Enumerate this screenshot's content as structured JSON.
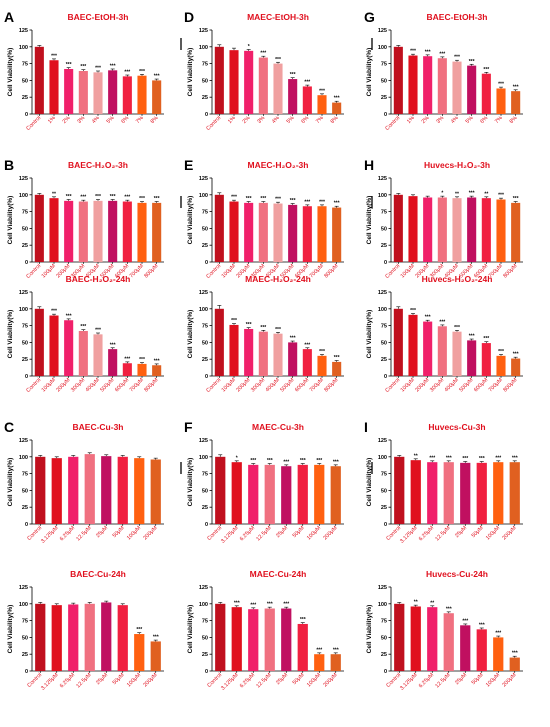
{
  "colors": {
    "title": "#e0101e",
    "category_label": "#e0101e",
    "axis": "#000000",
    "palette9": [
      "#c0101e",
      "#e0101e",
      "#f0206a",
      "#f07080",
      "#f0a0a0",
      "#c01060",
      "#f02040",
      "#ff6010",
      "#e06020"
    ],
    "palette8": [
      "#c0101e",
      "#e0101e",
      "#f0206a",
      "#f07080",
      "#c01060",
      "#f02040",
      "#ff6010",
      "#e06020"
    ],
    "palette7": [
      "#c0101e",
      "#e0101e",
      "#f0206a",
      "#f07080",
      "#c01060",
      "#ff6010",
      "#f02040"
    ]
  },
  "chart_data": [
    {
      "type": "bar",
      "panel": "A",
      "title": "BAEC-EtOH-3h",
      "ylabel": "Cell Viability(%)",
      "ylim": [
        0,
        125
      ],
      "yticks": [
        0,
        25,
        50,
        75,
        100,
        125
      ],
      "categories": [
        "Control",
        "1%",
        "2%",
        "3%",
        "4%",
        "5%",
        "6%",
        "7%",
        "8%"
      ],
      "values": [
        100,
        80,
        67,
        64,
        62,
        65,
        56,
        57,
        50
      ],
      "errors": [
        2,
        2,
        2,
        2,
        2,
        2,
        2,
        2,
        2
      ],
      "significance": [
        "",
        "***",
        "***",
        "***",
        "***",
        "***",
        "***",
        "***",
        "***"
      ]
    },
    {
      "type": "bar",
      "panel": "D",
      "title": "MAEC-EtOH-3h",
      "ylabel": "Cell Viability(%)",
      "ylim": [
        0,
        125
      ],
      "yticks": [
        0,
        25,
        50,
        75,
        100,
        125
      ],
      "categories": [
        "Control",
        "1%",
        "2%",
        "3%",
        "4%",
        "5%",
        "6%",
        "7%",
        "8%"
      ],
      "values": [
        100,
        95,
        94,
        84,
        75,
        52,
        41,
        28,
        17
      ],
      "errors": [
        3,
        3,
        2,
        2,
        2,
        2,
        2,
        2,
        2
      ],
      "significance": [
        "",
        "",
        "*",
        "***",
        "***",
        "***",
        "***",
        "***",
        "***"
      ]
    },
    {
      "type": "bar",
      "panel": "G",
      "title": "BAEC-EtOH-3h",
      "ylabel": "Cell Viability(%)",
      "ylim": [
        0,
        125
      ],
      "yticks": [
        0,
        25,
        50,
        75,
        100,
        125
      ],
      "categories": [
        "Control",
        "1%",
        "2%",
        "3%",
        "4%",
        "5%",
        "6%",
        "7%",
        "8%"
      ],
      "values": [
        100,
        87,
        86,
        83,
        78,
        72,
        60,
        38,
        34
      ],
      "errors": [
        2,
        2,
        2,
        2,
        2,
        2,
        2,
        2,
        2
      ],
      "significance": [
        "",
        "***",
        "***",
        "***",
        "***",
        "***",
        "***",
        "***",
        "***"
      ]
    },
    {
      "type": "bar",
      "panel": "B",
      "title": "BAEC-H₂O₂-3h",
      "ylabel": "Cell Viability(%)",
      "ylim": [
        0,
        125
      ],
      "yticks": [
        0,
        25,
        50,
        75,
        100,
        125
      ],
      "categories": [
        "Control",
        "100μM",
        "200μM",
        "300μM",
        "400μM",
        "500μM",
        "600μM",
        "700μM",
        "800μM"
      ],
      "values": [
        100,
        95,
        91,
        90,
        91,
        91,
        90,
        88,
        88
      ],
      "errors": [
        2,
        2,
        2,
        2,
        2,
        2,
        2,
        2,
        2
      ],
      "significance": [
        "",
        "**",
        "***",
        "***",
        "***",
        "***",
        "***",
        "***",
        "***"
      ]
    },
    {
      "type": "bar",
      "panel": "E",
      "title": "MAEC-H₂O₂-3h",
      "ylabel": "Cell Viability(%)",
      "ylim": [
        0,
        125
      ],
      "yticks": [
        0,
        25,
        50,
        75,
        100,
        125
      ],
      "categories": [
        "Control",
        "100μM",
        "200μM",
        "300μM",
        "400μM",
        "500μM",
        "600μM",
        "700μM",
        "800μM"
      ],
      "values": [
        100,
        90,
        88,
        88,
        87,
        85,
        83,
        83,
        81
      ],
      "errors": [
        3,
        2,
        2,
        2,
        2,
        2,
        2,
        2,
        2
      ],
      "significance": [
        "",
        "***",
        "***",
        "***",
        "***",
        "***",
        "***",
        "***",
        "***"
      ]
    },
    {
      "type": "bar",
      "panel": "H",
      "title": "Huvecs-H₂O₂-3h",
      "ylabel": "Cell Viability(%)",
      "ylim": [
        0,
        125
      ],
      "yticks": [
        0,
        25,
        50,
        75,
        100,
        125
      ],
      "categories": [
        "Control",
        "100μM",
        "200μM",
        "300μM",
        "400μM",
        "500μM",
        "600μM",
        "700μM",
        "800μM"
      ],
      "values": [
        100,
        98,
        96,
        96,
        95,
        96,
        95,
        93,
        88
      ],
      "errors": [
        2,
        2,
        2,
        2,
        2,
        2,
        2,
        2,
        2
      ],
      "significance": [
        "",
        "",
        "",
        "*",
        "**",
        "***",
        "**",
        "***",
        "***"
      ]
    },
    {
      "type": "bar",
      "panel": "",
      "title": "BAEC-H₂O₂-24h",
      "ylabel": "Cell Viability(%)",
      "ylim": [
        0,
        125
      ],
      "yticks": [
        0,
        25,
        50,
        75,
        100,
        125
      ],
      "categories": [
        "Control",
        "100μM",
        "200μM",
        "300μM",
        "400μM",
        "500μM",
        "600μM",
        "700μM",
        "800μM"
      ],
      "values": [
        100,
        90,
        83,
        67,
        62,
        40,
        19,
        18,
        16
      ],
      "errors": [
        3,
        2,
        2,
        2,
        2,
        2,
        2,
        2,
        2
      ],
      "significance": [
        "",
        "***",
        "***",
        "***",
        "***",
        "***",
        "***",
        "***",
        "***"
      ]
    },
    {
      "type": "bar",
      "panel": "",
      "title": "MAEC-H₂O₂-24h",
      "ylabel": "Cell Viability(%)",
      "ylim": [
        0,
        125
      ],
      "yticks": [
        0,
        25,
        50,
        75,
        100,
        125
      ],
      "categories": [
        "Control",
        "100μM",
        "200μM",
        "300μM",
        "400μM",
        "500μM",
        "600μM",
        "700μM",
        "800μM"
      ],
      "values": [
        100,
        76,
        70,
        66,
        63,
        50,
        40,
        30,
        21
      ],
      "errors": [
        5,
        2,
        2,
        2,
        2,
        2,
        2,
        2,
        2
      ],
      "significance": [
        "",
        "***",
        "***",
        "***",
        "***",
        "***",
        "***",
        "***",
        "***"
      ]
    },
    {
      "type": "bar",
      "panel": "",
      "title": "Huvecs-H₂O₂-24h",
      "ylabel": "Cell Viability(%)",
      "ylim": [
        0,
        125
      ],
      "yticks": [
        0,
        25,
        50,
        75,
        100,
        125
      ],
      "categories": [
        "Control",
        "100μM",
        "200μM",
        "300μM",
        "400μM",
        "500μM",
        "600μM",
        "700μM",
        "800μM"
      ],
      "values": [
        100,
        91,
        81,
        74,
        66,
        53,
        49,
        30,
        26
      ],
      "errors": [
        3,
        2,
        2,
        2,
        2,
        2,
        2,
        2,
        2
      ],
      "significance": [
        "",
        "***",
        "***",
        "***",
        "***",
        "***",
        "***",
        "***",
        "***"
      ]
    },
    {
      "type": "bar",
      "panel": "C",
      "title": "BAEC-Cu-3h",
      "ylabel": "Cell Viability(%)",
      "ylim": [
        0,
        125
      ],
      "yticks": [
        0,
        25,
        50,
        75,
        100,
        125
      ],
      "categories": [
        "Control",
        "3.125μM",
        "6.25μM",
        "12.5μM",
        "25μM",
        "50μM",
        "100μM",
        "200μM"
      ],
      "values": [
        100,
        98,
        100,
        104,
        101,
        100,
        98,
        96
      ],
      "errors": [
        2,
        2,
        2,
        2,
        2,
        2,
        2,
        2
      ],
      "significance": [
        "",
        "",
        "",
        "",
        "",
        "",
        "",
        ""
      ]
    },
    {
      "type": "bar",
      "panel": "F",
      "title": "MAEC-Cu-3h",
      "ylabel": "Cell Viability(%)",
      "ylim": [
        0,
        125
      ],
      "yticks": [
        0,
        25,
        50,
        75,
        100,
        125
      ],
      "categories": [
        "Control",
        "3.125μM",
        "6.25μM",
        "12.5μM",
        "25μM",
        "50μM",
        "100μM",
        "200μM"
      ],
      "values": [
        100,
        92,
        88,
        88,
        86,
        88,
        88,
        86
      ],
      "errors": [
        3,
        2,
        2,
        2,
        2,
        2,
        2,
        2
      ],
      "significance": [
        "",
        "*",
        "***",
        "***",
        "***",
        "***",
        "***",
        "***"
      ]
    },
    {
      "type": "bar",
      "panel": "I",
      "title": "Huvecs-Cu-3h",
      "ylabel": "Cell Viability(%)",
      "ylim": [
        0,
        125
      ],
      "yticks": [
        0,
        25,
        50,
        75,
        100,
        125
      ],
      "categories": [
        "Control",
        "3.125μM",
        "6.25μM",
        "12.5μM",
        "25μM",
        "50μM",
        "100μM",
        "200μM"
      ],
      "values": [
        100,
        95,
        92,
        92,
        91,
        91,
        92,
        92
      ],
      "errors": [
        2,
        2,
        2,
        2,
        2,
        2,
        2,
        2
      ],
      "significance": [
        "",
        "**",
        "***",
        "***",
        "***",
        "***",
        "***",
        "***"
      ]
    },
    {
      "type": "bar",
      "panel": "",
      "title": "BAEC-Cu-24h",
      "ylabel": "Cell Viability(%)",
      "ylim": [
        0,
        125
      ],
      "yticks": [
        0,
        25,
        50,
        75,
        100,
        125
      ],
      "categories": [
        "Control",
        "3.125μM",
        "6.25μM",
        "12.5μM",
        "25μM",
        "50μM",
        "100μM",
        "200μM"
      ],
      "values": [
        100,
        98,
        99,
        100,
        102,
        98,
        55,
        44
      ],
      "errors": [
        2,
        2,
        2,
        2,
        2,
        2,
        2,
        2
      ],
      "significance": [
        "",
        "",
        "",
        "",
        "",
        "",
        "***",
        "***"
      ]
    },
    {
      "type": "bar",
      "panel": "",
      "title": "MAEC-Cu-24h",
      "ylabel": "Cell Viability(%)",
      "ylim": [
        0,
        125
      ],
      "yticks": [
        0,
        25,
        50,
        75,
        100,
        125
      ],
      "categories": [
        "Control",
        "3.125μM",
        "6.25μM",
        "12.5μM",
        "25μM",
        "50μM",
        "100μM",
        "200μM"
      ],
      "values": [
        100,
        95,
        92,
        93,
        93,
        70,
        25,
        25
      ],
      "errors": [
        2,
        2,
        2,
        2,
        2,
        2,
        2,
        2
      ],
      "significance": [
        "",
        "***",
        "***",
        "***",
        "***",
        "***",
        "***",
        "***"
      ]
    },
    {
      "type": "bar",
      "panel": "",
      "title": "Huvecs-Cu-24h",
      "ylabel": "Cell Viability(%)",
      "ylim": [
        0,
        125
      ],
      "yticks": [
        0,
        25,
        50,
        75,
        100,
        125
      ],
      "categories": [
        "Control",
        "3.125μM",
        "6.25μM",
        "12.5μM",
        "25μM",
        "50μM",
        "100μM",
        "200μM"
      ],
      "values": [
        100,
        96,
        95,
        86,
        68,
        62,
        50,
        20
      ],
      "errors": [
        2,
        2,
        2,
        2,
        2,
        2,
        2,
        2
      ],
      "significance": [
        "",
        "**",
        "**",
        "***",
        "***",
        "***",
        "***",
        "***"
      ]
    }
  ]
}
